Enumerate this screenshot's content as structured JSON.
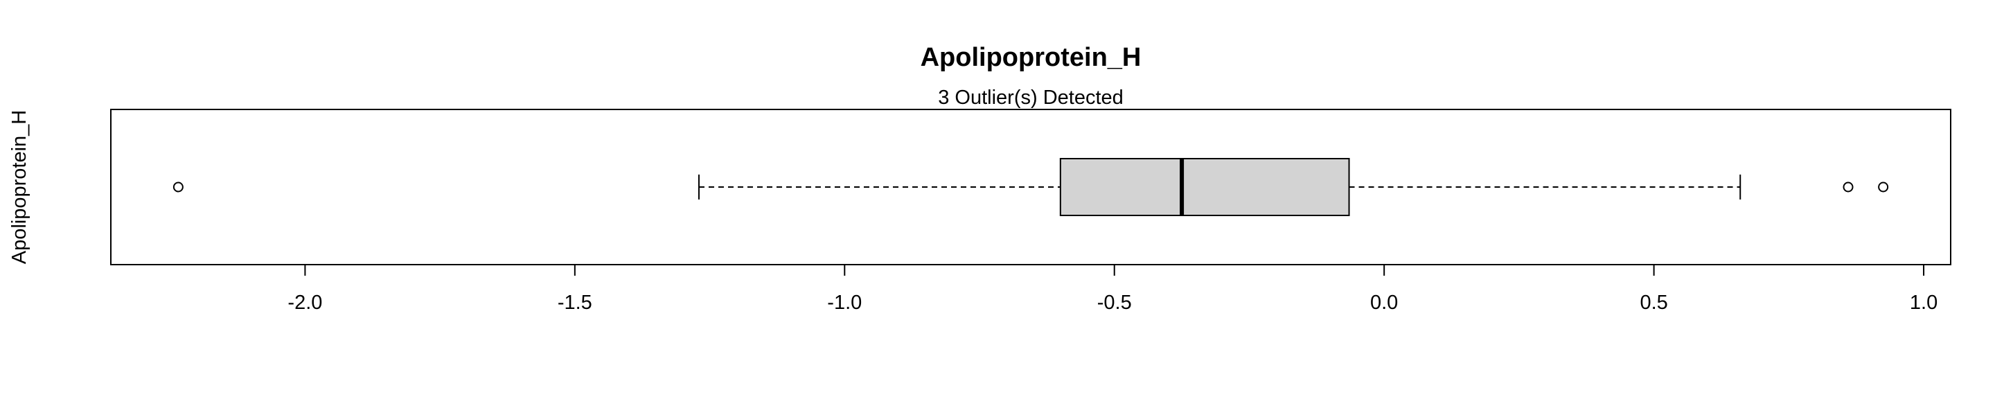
{
  "chart_data": {
    "type": "boxplot",
    "orientation": "horizontal",
    "title": "Apolipoprotein_H",
    "subtitle": "3 Outlier(s) Detected",
    "ylabel": "Apolipoprotein_H",
    "xlim": [
      -2.36,
      1.05
    ],
    "ticks": [
      -2.0,
      -1.5,
      -1.0,
      -0.5,
      0.0,
      0.5,
      1.0
    ],
    "tick_labels": [
      "-2.0",
      "-1.5",
      "-1.0",
      "-0.5",
      "0.0",
      "0.5",
      "1.0"
    ],
    "box": {
      "whisker_low": -1.27,
      "q1": -0.6,
      "median": -0.375,
      "q3": -0.065,
      "whisker_high": 0.66
    },
    "outliers": [
      -2.235,
      0.86,
      0.925
    ],
    "colors": {
      "box_fill": "#d3d3d3",
      "stroke": "#000000"
    }
  }
}
